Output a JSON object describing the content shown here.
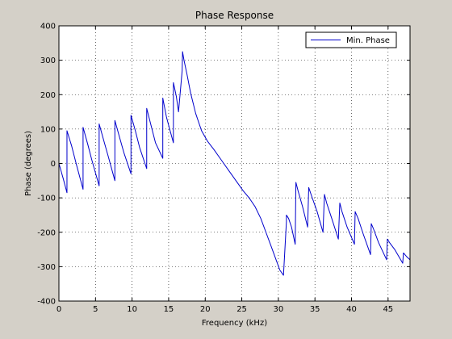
{
  "chart_data": {
    "type": "line",
    "title": "Phase Response",
    "xlabel": "Frequency (kHz)",
    "ylabel": "Phase (degrees)",
    "xlim": [
      0,
      48
    ],
    "ylim": [
      -400,
      400
    ],
    "xticks": [
      0,
      5,
      10,
      15,
      20,
      25,
      30,
      35,
      40,
      45
    ],
    "yticks": [
      -400,
      -300,
      -200,
      -100,
      0,
      100,
      200,
      300,
      400
    ],
    "grid": true,
    "legend_position": "top-right",
    "series": [
      {
        "name": "Min. Phase",
        "color": "#0000cc",
        "x": [
          0,
          0.6,
          1.1,
          1.1,
          1.75,
          2.35,
          3.3,
          3.3,
          3.95,
          4.5,
          5.5,
          5.5,
          6.15,
          6.75,
          7.65,
          7.65,
          8.3,
          8.9,
          9.85,
          9.85,
          10.45,
          11.05,
          12.0,
          12.0,
          12.6,
          13.2,
          14.2,
          14.2,
          14.7,
          15.2,
          15.65,
          15.65,
          16.05,
          16.35,
          16.85,
          16.9,
          17.1,
          17.5,
          18.0,
          18.7,
          19.5,
          20.3,
          21.2,
          22.2,
          23.2,
          24.2,
          25.2,
          26.0,
          26.8,
          27.6,
          28.3,
          29.0,
          29.6,
          30.2,
          30.7,
          31.1,
          31.1,
          31.4,
          31.8,
          32.3,
          32.4,
          32.7,
          33.3,
          34.0,
          34.15,
          34.55,
          35.3,
          36.1,
          36.3,
          36.6,
          37.3,
          38.2,
          38.4,
          38.7,
          39.4,
          40.4,
          40.5,
          40.9,
          41.6,
          42.6,
          42.7,
          43.0,
          43.7,
          44.8,
          44.9,
          45.2,
          45.9,
          47.0,
          47.1,
          47.5,
          48.0
        ],
        "y": [
          0,
          -45,
          -85,
          95,
          50,
          0,
          -75,
          105,
          55,
          10,
          -65,
          115,
          65,
          20,
          -50,
          125,
          75,
          30,
          -30,
          140,
          95,
          45,
          -15,
          160,
          110,
          60,
          15,
          190,
          135,
          95,
          60,
          235,
          195,
          150,
          270,
          325,
          300,
          260,
          205,
          145,
          95,
          65,
          40,
          10,
          -20,
          -50,
          -80,
          -100,
          -125,
          -160,
          -200,
          -240,
          -275,
          -310,
          -325,
          -170,
          -150,
          -160,
          -185,
          -235,
          -55,
          -80,
          -125,
          -185,
          -70,
          -95,
          -140,
          -200,
          -90,
          -115,
          -160,
          -220,
          -115,
          -140,
          -185,
          -235,
          -140,
          -160,
          -205,
          -265,
          -175,
          -190,
          -230,
          -280,
          -220,
          -230,
          -250,
          -290,
          -260,
          -270,
          -280
        ]
      }
    ]
  }
}
